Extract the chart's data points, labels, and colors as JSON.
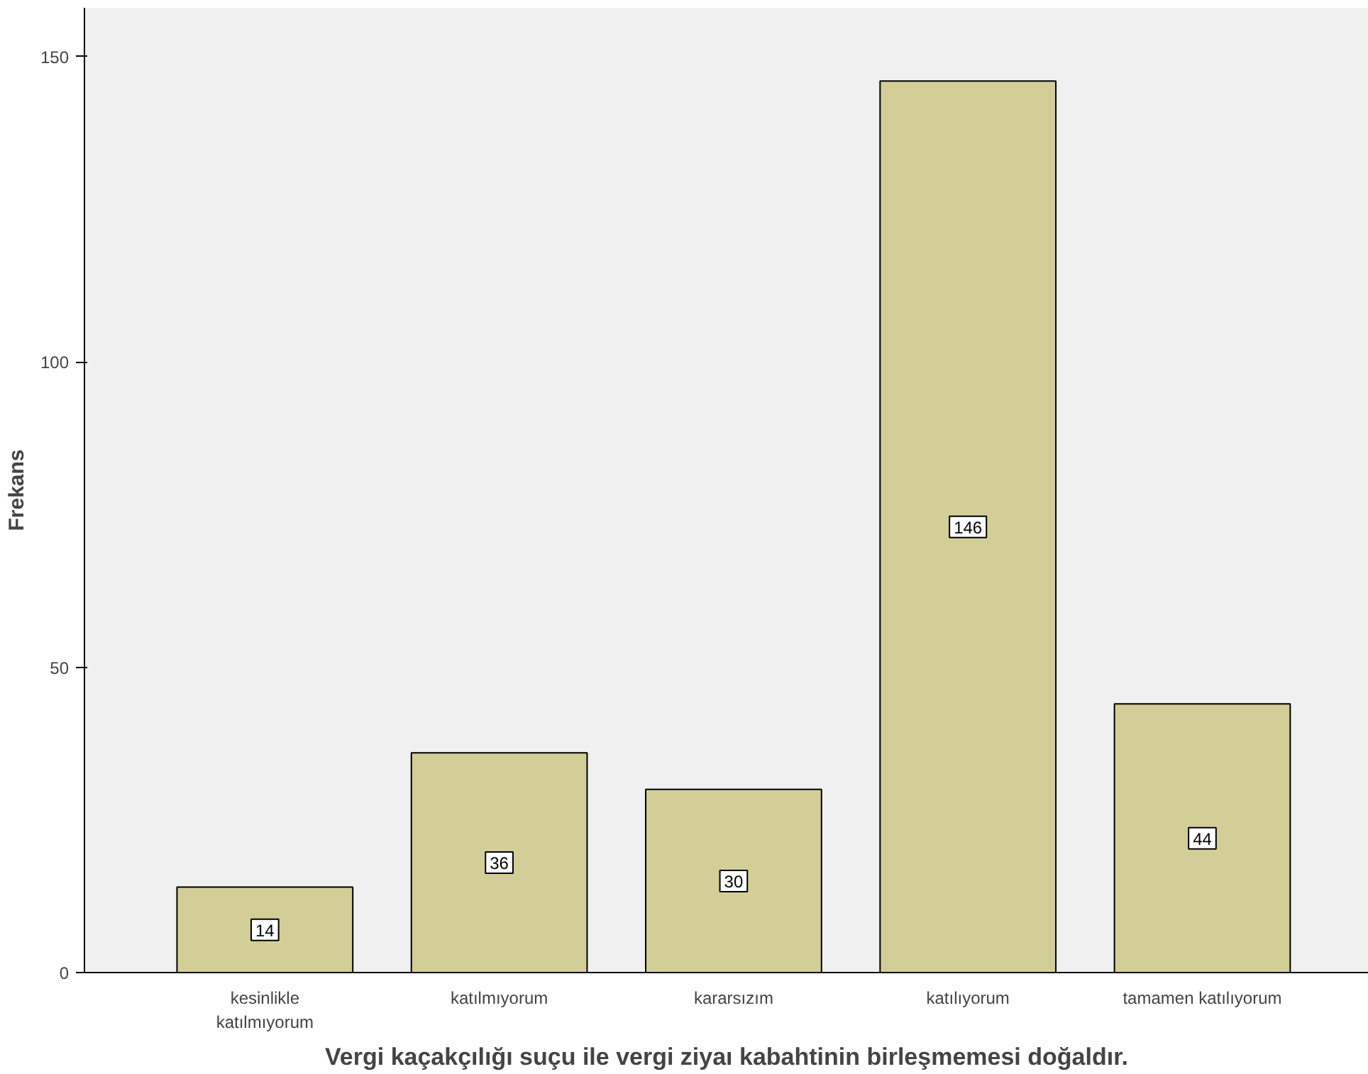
{
  "chart_data": {
    "type": "bar",
    "xlabel": "Vergi kaçakçılığı suçu ile vergi ziyaı kabahtinin birleşmemesi doğaldır.",
    "ylabel": "Frekans",
    "categories": [
      "kesinlikle\nkatılmıyorum",
      "katılmıyorum",
      "kararsızım",
      "katılıyorum",
      "tamamen katılıyorum"
    ],
    "values": [
      14,
      36,
      30,
      146,
      44
    ],
    "color": "#d3ce97",
    "ylim": [
      0,
      158
    ],
    "yticks": [
      0,
      50,
      100,
      150
    ],
    "grid": false,
    "data_labels": true
  }
}
